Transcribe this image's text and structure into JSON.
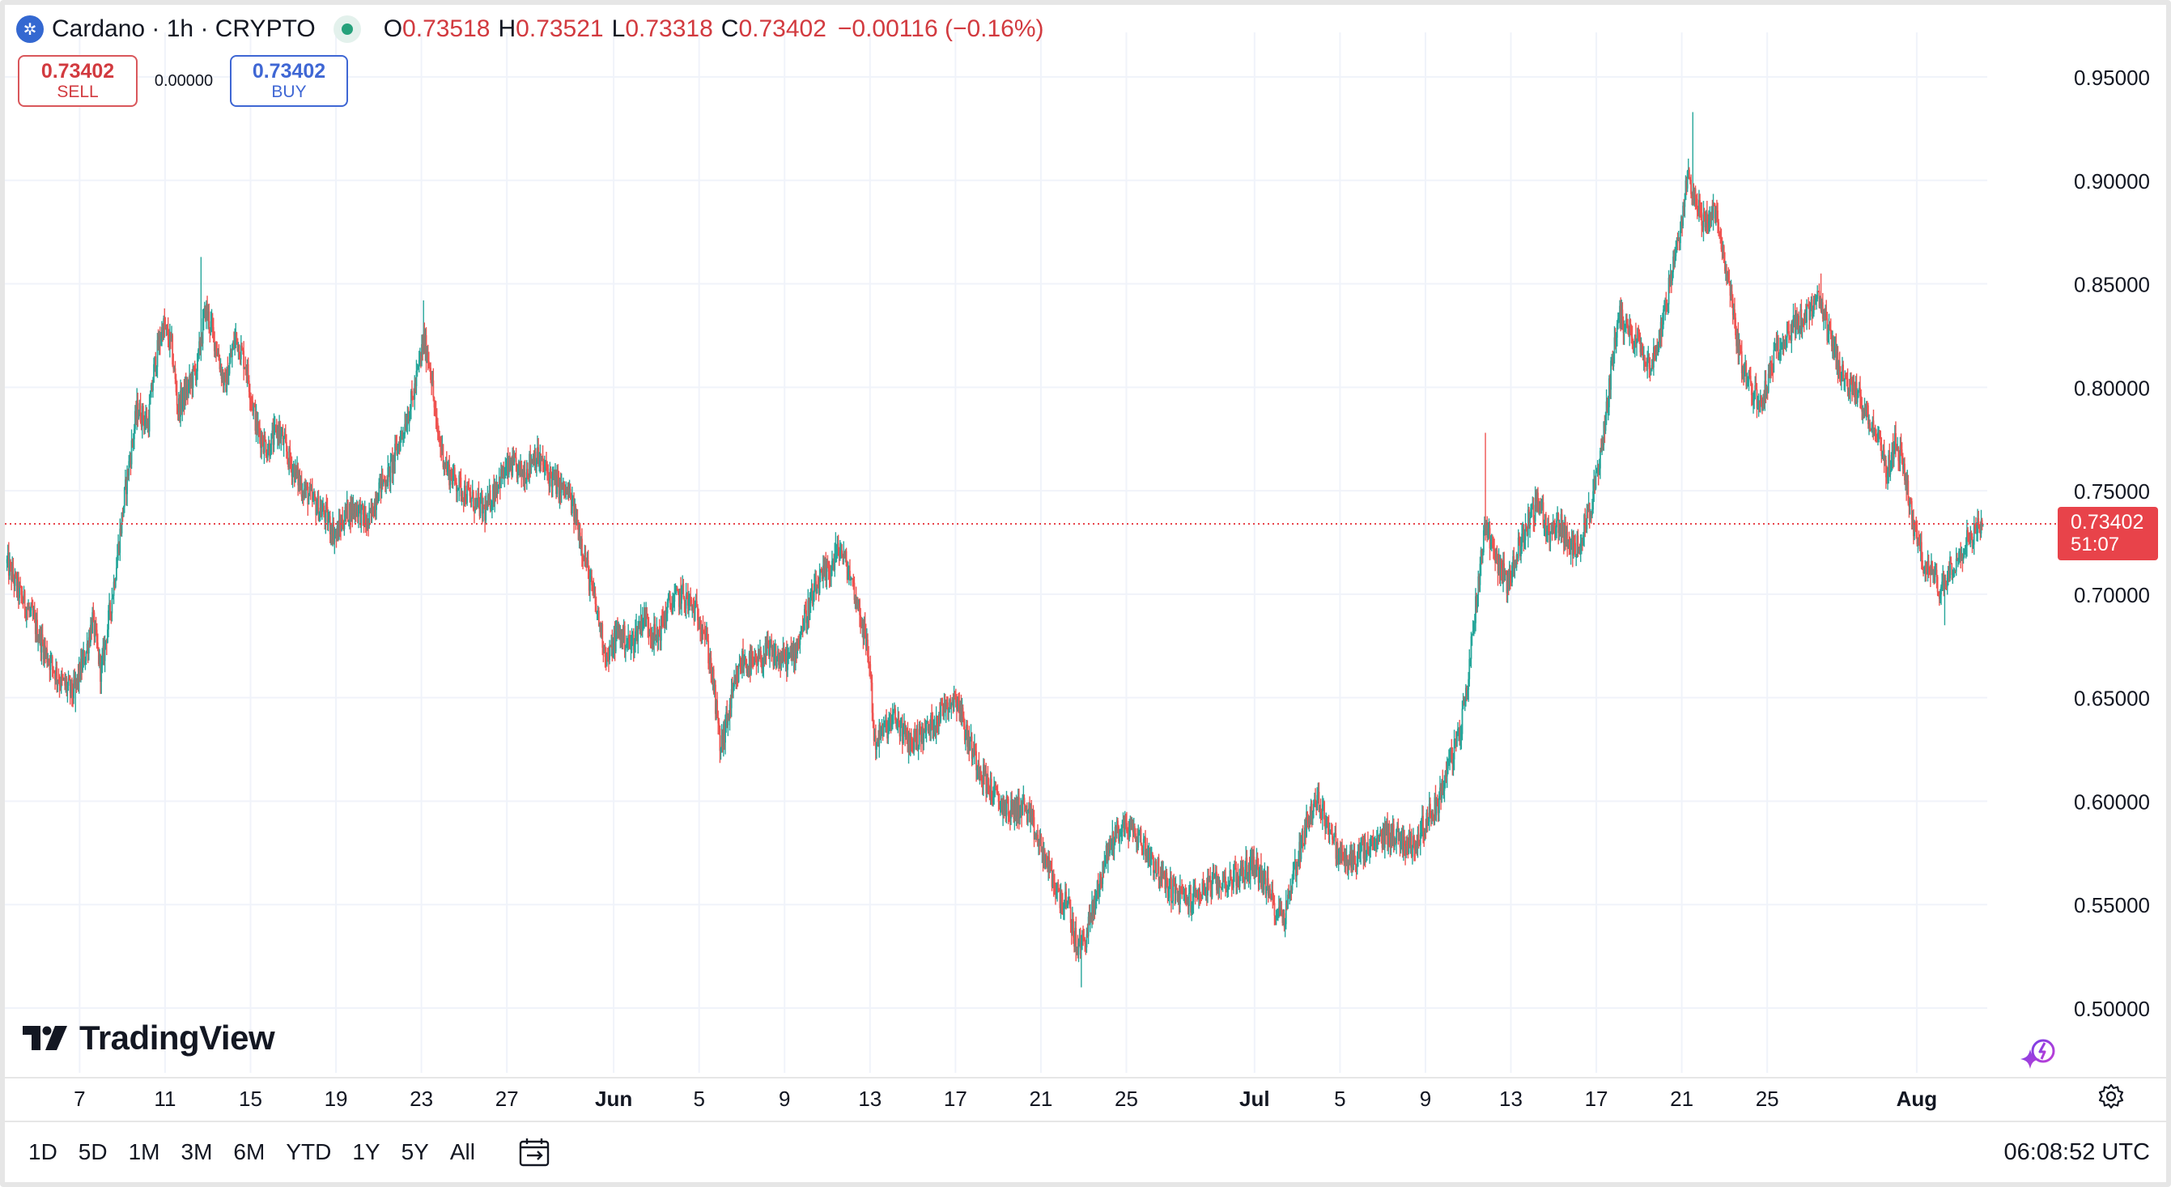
{
  "legend": {
    "symbol": "Cardano · 1h · CRYPTO",
    "open_label": "O",
    "open": "0.73518",
    "high_label": "H",
    "high": "0.73521",
    "low_label": "L",
    "low": "0.73318",
    "close_label": "C",
    "close": "0.73402",
    "change": "−0.00116 (−0.16%)",
    "coin_icon": "cardano-icon",
    "status_color": "#26a17b"
  },
  "trade": {
    "sell_price": "0.73402",
    "sell_label": "SELL",
    "spread": "0.00000",
    "buy_price": "0.73402",
    "buy_label": "BUY"
  },
  "price_tag": {
    "value": "0.73402",
    "countdown": "51:07",
    "color": "#e8434a"
  },
  "logo": {
    "text": "TradingView"
  },
  "toolbar": {
    "ranges": [
      "1D",
      "5D",
      "1M",
      "3M",
      "6M",
      "YTD",
      "1Y",
      "5Y",
      "All"
    ],
    "compare_icon": "calendar-range-icon",
    "clock": "06:08:52 UTC",
    "settings_icon": "gear-icon",
    "assist_icon": "sparkle-icon"
  },
  "colors": {
    "up": "#26a69a",
    "down": "#ef5350",
    "grid": "#f0f3fa",
    "last_price_line": "#e8434a"
  },
  "chart_data": {
    "type": "candlestick",
    "interval": "1h",
    "y_ticks": [
      "0.50000",
      "0.55000",
      "0.60000",
      "0.65000",
      "0.70000",
      "0.75000",
      "0.80000",
      "0.85000",
      "0.90000",
      "0.95000"
    ],
    "ylim": [
      0.48,
      0.97
    ],
    "x_ticks": [
      "7",
      "11",
      "15",
      "19",
      "23",
      "27",
      "Jun",
      "5",
      "9",
      "13",
      "17",
      "21",
      "25",
      "Jul",
      "5",
      "9",
      "13",
      "17",
      "21",
      "25",
      "Aug"
    ],
    "x_tick_days": [
      7,
      11,
      15,
      19,
      23,
      27,
      32,
      36,
      40,
      44,
      48,
      52,
      56,
      62,
      66,
      70,
      74,
      78,
      82,
      86,
      93
    ],
    "x_domain_days": [
      3.5,
      96.3
    ],
    "last_price": 0.73402,
    "close_path": [
      [
        3.6,
        0.715
      ],
      [
        4.2,
        0.7
      ],
      [
        4.8,
        0.688
      ],
      [
        5.4,
        0.672
      ],
      [
        6.1,
        0.658
      ],
      [
        6.7,
        0.652
      ],
      [
        7.3,
        0.672
      ],
      [
        7.6,
        0.688
      ],
      [
        8.0,
        0.662
      ],
      [
        8.6,
        0.705
      ],
      [
        9.2,
        0.755
      ],
      [
        9.7,
        0.79
      ],
      [
        10.2,
        0.782
      ],
      [
        10.5,
        0.81
      ],
      [
        10.9,
        0.83
      ],
      [
        11.3,
        0.82
      ],
      [
        11.6,
        0.79
      ],
      [
        12.1,
        0.8
      ],
      [
        12.5,
        0.81
      ],
      [
        12.9,
        0.838
      ],
      [
        13.4,
        0.82
      ],
      [
        13.8,
        0.8
      ],
      [
        14.3,
        0.825
      ],
      [
        14.8,
        0.81
      ],
      [
        15.3,
        0.78
      ],
      [
        15.8,
        0.77
      ],
      [
        16.3,
        0.78
      ],
      [
        16.8,
        0.765
      ],
      [
        17.4,
        0.752
      ],
      [
        17.9,
        0.745
      ],
      [
        18.5,
        0.738
      ],
      [
        19.0,
        0.728
      ],
      [
        19.5,
        0.74
      ],
      [
        20.0,
        0.742
      ],
      [
        20.5,
        0.733
      ],
      [
        21.0,
        0.752
      ],
      [
        21.5,
        0.758
      ],
      [
        22.0,
        0.775
      ],
      [
        22.6,
        0.795
      ],
      [
        23.1,
        0.822
      ],
      [
        23.4,
        0.812
      ],
      [
        23.7,
        0.78
      ],
      [
        24.2,
        0.76
      ],
      [
        24.8,
        0.752
      ],
      [
        25.4,
        0.745
      ],
      [
        26.0,
        0.74
      ],
      [
        26.6,
        0.755
      ],
      [
        27.2,
        0.762
      ],
      [
        27.8,
        0.758
      ],
      [
        28.3,
        0.768
      ],
      [
        28.8,
        0.76
      ],
      [
        29.4,
        0.752
      ],
      [
        29.9,
        0.748
      ],
      [
        30.4,
        0.73
      ],
      [
        30.8,
        0.71
      ],
      [
        31.2,
        0.692
      ],
      [
        31.7,
        0.668
      ],
      [
        32.2,
        0.682
      ],
      [
        32.8,
        0.675
      ],
      [
        33.4,
        0.69
      ],
      [
        34.0,
        0.678
      ],
      [
        34.6,
        0.695
      ],
      [
        35.2,
        0.7
      ],
      [
        35.8,
        0.692
      ],
      [
        36.2,
        0.685
      ],
      [
        36.6,
        0.662
      ],
      [
        37.0,
        0.625
      ],
      [
        37.5,
        0.648
      ],
      [
        38.0,
        0.668
      ],
      [
        38.6,
        0.665
      ],
      [
        39.2,
        0.672
      ],
      [
        39.8,
        0.668
      ],
      [
        40.4,
        0.67
      ],
      [
        41.0,
        0.69
      ],
      [
        41.6,
        0.705
      ],
      [
        42.1,
        0.712
      ],
      [
        42.6,
        0.722
      ],
      [
        43.1,
        0.708
      ],
      [
        43.6,
        0.688
      ],
      [
        44.0,
        0.665
      ],
      [
        44.2,
        0.628
      ],
      [
        44.7,
        0.635
      ],
      [
        45.2,
        0.64
      ],
      [
        45.8,
        0.628
      ],
      [
        46.4,
        0.632
      ],
      [
        47.0,
        0.638
      ],
      [
        47.6,
        0.648
      ],
      [
        48.1,
        0.65
      ],
      [
        48.5,
        0.632
      ],
      [
        49.0,
        0.62
      ],
      [
        49.5,
        0.608
      ],
      [
        50.0,
        0.6
      ],
      [
        50.6,
        0.595
      ],
      [
        51.2,
        0.598
      ],
      [
        51.7,
        0.585
      ],
      [
        52.2,
        0.572
      ],
      [
        52.8,
        0.555
      ],
      [
        53.3,
        0.548
      ],
      [
        53.7,
        0.528
      ],
      [
        54.1,
        0.535
      ],
      [
        54.5,
        0.55
      ],
      [
        55.0,
        0.572
      ],
      [
        55.5,
        0.585
      ],
      [
        56.0,
        0.588
      ],
      [
        56.6,
        0.582
      ],
      [
        57.2,
        0.572
      ],
      [
        57.8,
        0.56
      ],
      [
        58.4,
        0.555
      ],
      [
        59.0,
        0.552
      ],
      [
        59.6,
        0.558
      ],
      [
        60.2,
        0.56
      ],
      [
        60.8,
        0.562
      ],
      [
        61.4,
        0.565
      ],
      [
        62.0,
        0.57
      ],
      [
        62.4,
        0.562
      ],
      [
        63.0,
        0.548
      ],
      [
        63.4,
        0.545
      ],
      [
        63.9,
        0.568
      ],
      [
        64.5,
        0.592
      ],
      [
        65.0,
        0.6
      ],
      [
        65.4,
        0.59
      ],
      [
        65.9,
        0.575
      ],
      [
        66.4,
        0.57
      ],
      [
        67.0,
        0.575
      ],
      [
        67.6,
        0.578
      ],
      [
        68.2,
        0.585
      ],
      [
        68.8,
        0.582
      ],
      [
        69.4,
        0.578
      ],
      [
        70.0,
        0.59
      ],
      [
        70.6,
        0.6
      ],
      [
        71.1,
        0.618
      ],
      [
        71.6,
        0.632
      ],
      [
        72.0,
        0.66
      ],
      [
        72.4,
        0.7
      ],
      [
        72.8,
        0.735
      ],
      [
        73.3,
        0.718
      ],
      [
        73.8,
        0.705
      ],
      [
        74.3,
        0.72
      ],
      [
        74.8,
        0.735
      ],
      [
        75.3,
        0.745
      ],
      [
        75.8,
        0.728
      ],
      [
        76.3,
        0.735
      ],
      [
        76.8,
        0.72
      ],
      [
        77.3,
        0.728
      ],
      [
        77.8,
        0.745
      ],
      [
        78.2,
        0.765
      ],
      [
        78.6,
        0.8
      ],
      [
        79.0,
        0.835
      ],
      [
        79.5,
        0.828
      ],
      [
        80.0,
        0.822
      ],
      [
        80.6,
        0.81
      ],
      [
        81.1,
        0.832
      ],
      [
        81.6,
        0.858
      ],
      [
        82.0,
        0.878
      ],
      [
        82.3,
        0.905
      ],
      [
        82.7,
        0.888
      ],
      [
        83.1,
        0.878
      ],
      [
        83.5,
        0.888
      ],
      [
        83.9,
        0.865
      ],
      [
        84.3,
        0.845
      ],
      [
        84.7,
        0.815
      ],
      [
        85.2,
        0.8
      ],
      [
        85.7,
        0.792
      ],
      [
        86.2,
        0.81
      ],
      [
        86.7,
        0.825
      ],
      [
        87.3,
        0.83
      ],
      [
        87.9,
        0.835
      ],
      [
        88.4,
        0.842
      ],
      [
        88.8,
        0.828
      ],
      [
        89.3,
        0.812
      ],
      [
        89.8,
        0.8
      ],
      [
        90.3,
        0.795
      ],
      [
        90.8,
        0.785
      ],
      [
        91.2,
        0.775
      ],
      [
        91.6,
        0.758
      ],
      [
        92.0,
        0.775
      ],
      [
        92.4,
        0.76
      ],
      [
        92.9,
        0.73
      ],
      [
        93.3,
        0.715
      ],
      [
        93.7,
        0.71
      ],
      [
        94.1,
        0.702
      ],
      [
        94.5,
        0.712
      ],
      [
        94.9,
        0.718
      ],
      [
        95.3,
        0.725
      ],
      [
        95.7,
        0.73
      ],
      [
        96.1,
        0.734
      ]
    ],
    "extremes": [
      {
        "day": 12.7,
        "high": 0.863
      },
      {
        "day": 23.1,
        "high": 0.842
      },
      {
        "day": 42.4,
        "high": 0.73
      },
      {
        "day": 53.9,
        "low": 0.51
      },
      {
        "day": 72.8,
        "high": 0.778
      },
      {
        "day": 82.5,
        "high": 0.933
      },
      {
        "day": 88.5,
        "high": 0.855
      },
      {
        "day": 6.8,
        "low": 0.643
      },
      {
        "day": 37.0,
        "low": 0.62
      },
      {
        "day": 63.4,
        "low": 0.537
      },
      {
        "day": 94.3,
        "low": 0.685
      }
    ]
  }
}
